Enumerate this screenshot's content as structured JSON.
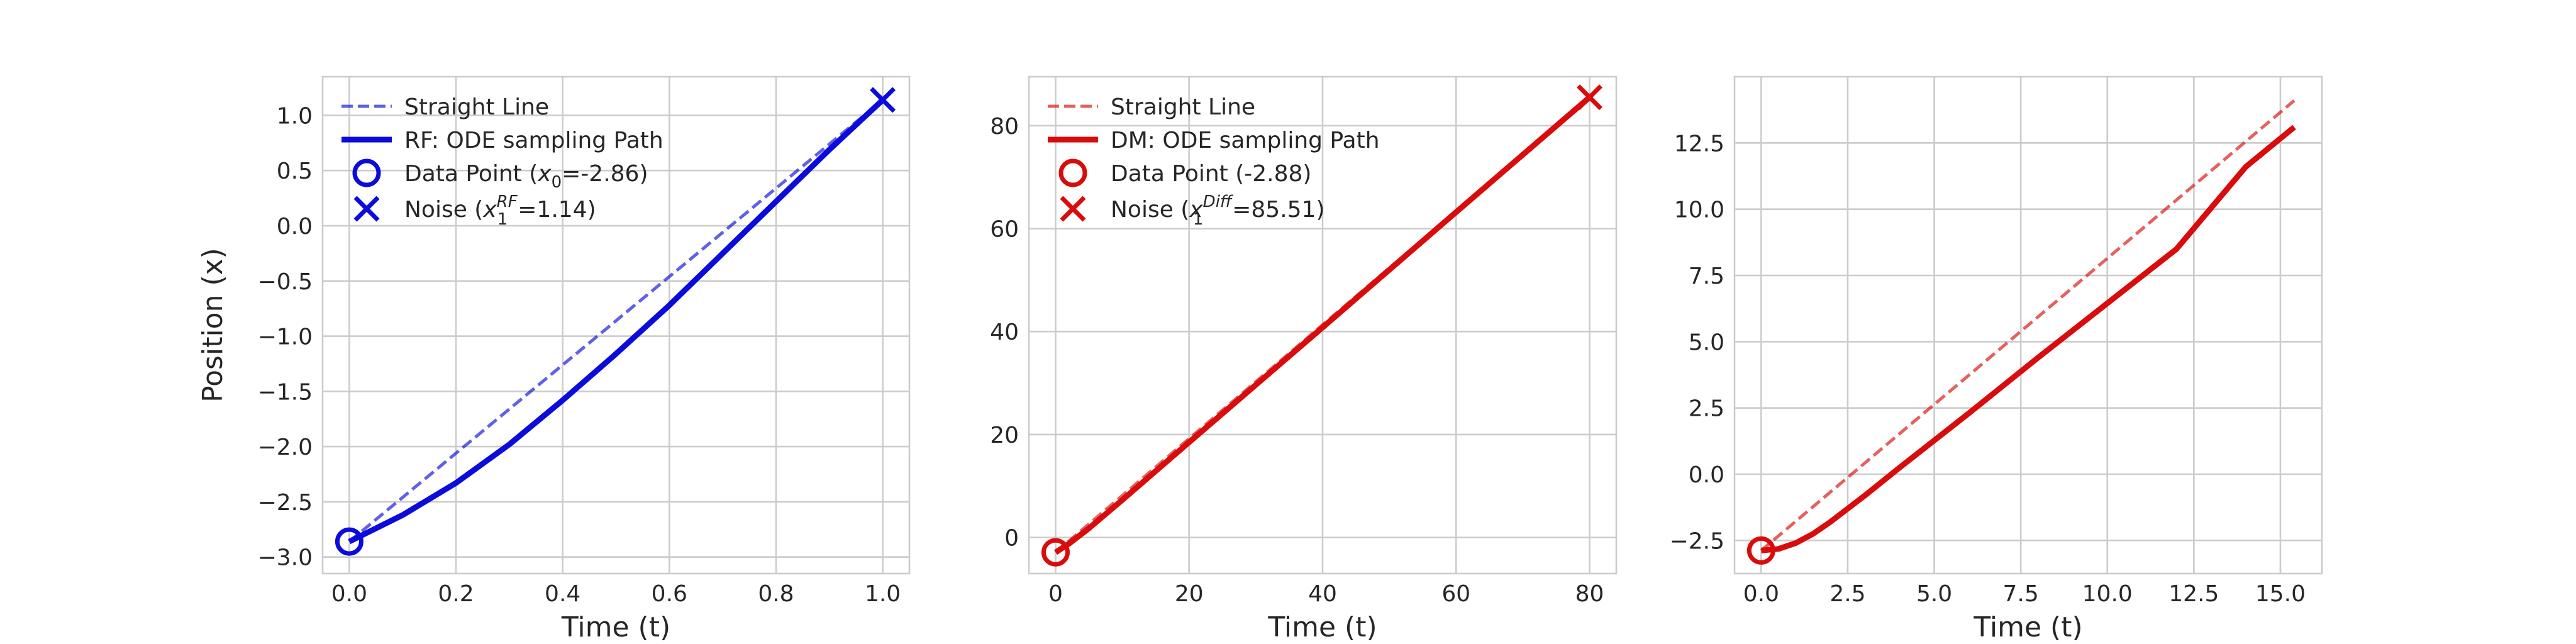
{
  "chart_data": [
    {
      "type": "line",
      "xlabel": "Time (t)",
      "ylabel": "Position (x)",
      "xlim": [
        -0.05,
        1.05
      ],
      "ylim": [
        -3.15,
        1.35
      ],
      "xticks": [
        0.0,
        0.2,
        0.4,
        0.6,
        0.8,
        1.0
      ],
      "yticks": [
        -3.0,
        -2.5,
        -2.0,
        -1.5,
        -1.0,
        -0.5,
        0.0,
        0.5,
        1.0
      ],
      "xtick_labels": [
        "0.0",
        "0.2",
        "0.4",
        "0.6",
        "0.8",
        "1.0"
      ],
      "ytick_labels": [
        "−3.0",
        "−2.5",
        "−2.0",
        "−1.5",
        "−1.0",
        "−0.5",
        "0.0",
        "0.5",
        "1.0"
      ],
      "grid": true,
      "legend_position": "top-left",
      "color": "#0b0bdc",
      "series": [
        {
          "name": "Straight Line",
          "style": "dashed",
          "x": [
            0.0,
            1.0
          ],
          "y": [
            -2.86,
            1.14
          ]
        },
        {
          "name": "RF: ODE sampling Path",
          "style": "solid",
          "x": [
            0.0,
            0.1,
            0.2,
            0.3,
            0.4,
            0.5,
            0.6,
            0.7,
            0.8,
            0.9,
            1.0
          ],
          "y": [
            -2.86,
            -2.62,
            -2.33,
            -1.98,
            -1.58,
            -1.16,
            -0.72,
            -0.25,
            0.22,
            0.69,
            1.14
          ]
        }
      ],
      "markers": [
        {
          "name": "Data Point",
          "legend_prefix": "Data Point (",
          "legend_var": "x",
          "legend_sub": "0",
          "legend_sup": "",
          "legend_suffix": "=-2.86)",
          "shape": "circle",
          "x": 0.0,
          "y": -2.86
        },
        {
          "name": "Noise",
          "legend_prefix": "Noise (",
          "legend_var": "x",
          "legend_sub": "1",
          "legend_sup": "RF",
          "legend_suffix": "=1.14)",
          "shape": "x",
          "x": 1.0,
          "y": 1.14
        }
      ]
    },
    {
      "type": "line",
      "xlabel": "Time (t)",
      "ylabel": "",
      "xlim": [
        -4.0,
        84.0
      ],
      "ylim": [
        -7.0,
        89.5
      ],
      "xticks": [
        0,
        20,
        40,
        60,
        80
      ],
      "yticks": [
        0,
        20,
        40,
        60,
        80
      ],
      "xtick_labels": [
        "0",
        "20",
        "40",
        "60",
        "80"
      ],
      "ytick_labels": [
        "0",
        "20",
        "40",
        "60",
        "80"
      ],
      "grid": true,
      "legend_position": "top-left",
      "color": "#d90b0b",
      "series": [
        {
          "name": "Straight Line",
          "style": "dashed",
          "x": [
            0.0,
            80.0
          ],
          "y": [
            -2.88,
            85.51
          ]
        },
        {
          "name": "DM: ODE sampling Path",
          "style": "solid",
          "x": [
            0.0,
            2.0,
            5.0,
            10.0,
            20.0,
            40.0,
            60.0,
            80.0
          ],
          "y": [
            -2.88,
            -1.2,
            1.8,
            7.3,
            18.5,
            40.8,
            63.2,
            85.51
          ]
        }
      ],
      "markers": [
        {
          "name": "Data Point",
          "legend_prefix": "Data Point (-2.88)",
          "legend_var": "",
          "legend_sub": "",
          "legend_sup": "",
          "legend_suffix": "",
          "shape": "circle",
          "x": 0.0,
          "y": -2.88
        },
        {
          "name": "Noise",
          "legend_prefix": "Noise (",
          "legend_var": "x",
          "legend_sub": "1",
          "legend_sup": "Diff",
          "legend_suffix": "=85.51)",
          "shape": "x",
          "x": 80.0,
          "y": 85.51
        }
      ]
    },
    {
      "type": "line",
      "xlabel": "Time (t)",
      "ylabel": "",
      "xlim": [
        -0.77,
        16.2
      ],
      "ylim": [
        -3.75,
        15.0
      ],
      "xticks": [
        0.0,
        2.5,
        5.0,
        7.5,
        10.0,
        12.5,
        15.0
      ],
      "yticks": [
        -2.5,
        0.0,
        2.5,
        5.0,
        7.5,
        10.0,
        12.5
      ],
      "xtick_labels": [
        "0.0",
        "2.5",
        "5.0",
        "7.5",
        "10.0",
        "12.5",
        "15.0"
      ],
      "ytick_labels": [
        "−2.5",
        "0.0",
        "2.5",
        "5.0",
        "7.5",
        "10.0",
        "12.5"
      ],
      "grid": true,
      "legend_position": "none",
      "color": "#d90b0b",
      "series": [
        {
          "name": "",
          "style": "dashed",
          "x": [
            0.0,
            15.4
          ],
          "y": [
            -2.88,
            14.1
          ]
        },
        {
          "name": "",
          "style": "solid",
          "x": [
            0.0,
            0.5,
            1.0,
            1.5,
            2.0,
            3.0,
            4.0,
            6.0,
            8.0,
            10.0,
            12.0,
            14.0,
            15.4
          ],
          "y": [
            -2.88,
            -2.82,
            -2.6,
            -2.25,
            -1.8,
            -0.8,
            0.25,
            2.3,
            4.4,
            6.45,
            8.5,
            11.6,
            13.1
          ]
        }
      ],
      "markers": [
        {
          "name": "",
          "legend_prefix": "",
          "legend_var": "",
          "legend_sub": "",
          "legend_sup": "",
          "legend_suffix": "",
          "shape": "circle",
          "x": 0.0,
          "y": -2.88
        }
      ]
    }
  ]
}
